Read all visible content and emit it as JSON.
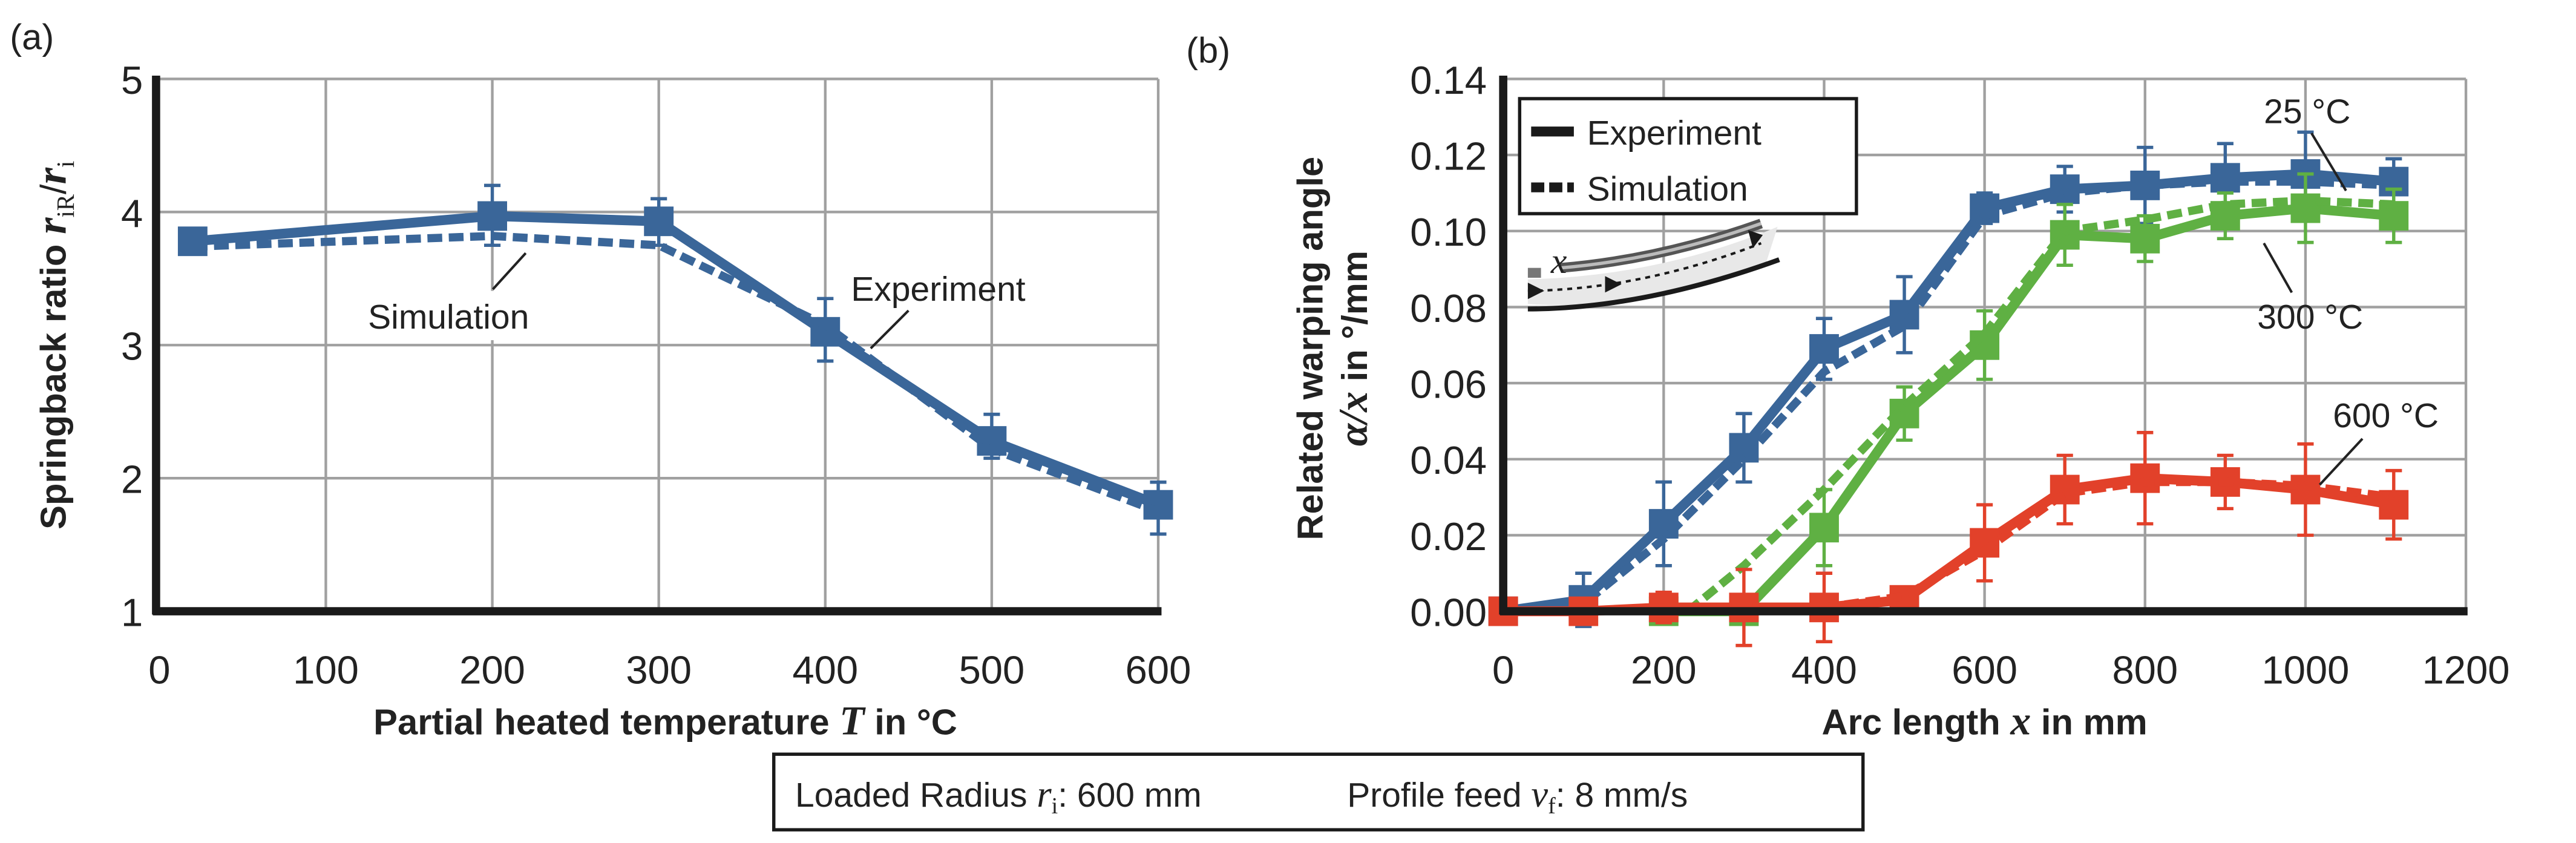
{
  "colors": {
    "blue": "#3a6699",
    "green": "#5fb043",
    "red": "#e2412a",
    "axis": "#1a1a1a",
    "grid": "#a0a0a0"
  },
  "chart_data": [
    {
      "panel_label": "(a)",
      "type": "line",
      "xlabel_pre": "Partial heated temperature ",
      "xlabel_var": "T",
      "xlabel_post": " in °C",
      "ylabel_pre": "Springback ratio ",
      "ylabel_var": "r",
      "ylabel_sub1": "iR",
      "ylabel_slash": "/",
      "ylabel_var2": "r",
      "ylabel_sub2": "i",
      "xlim": [
        0,
        600
      ],
      "ylim": [
        1,
        5
      ],
      "xticks": [
        0,
        100,
        200,
        300,
        400,
        500,
        600
      ],
      "yticks": [
        1,
        2,
        3,
        4,
        5
      ],
      "grid": true,
      "series": [
        {
          "name": "Experiment",
          "style": "solid",
          "color": "blue",
          "x": [
            20,
            200,
            300,
            400,
            500,
            600
          ],
          "y": [
            3.78,
            3.97,
            3.93,
            3.1,
            2.28,
            1.8
          ],
          "err_low": [
            3.72,
            3.75,
            3.75,
            2.88,
            2.15,
            1.58
          ],
          "err_high": [
            3.84,
            4.2,
            4.1,
            3.35,
            2.48,
            1.97
          ]
        },
        {
          "name": "Simulation",
          "style": "dashed",
          "color": "blue",
          "x": [
            20,
            200,
            300,
            400,
            500,
            600
          ],
          "y": [
            3.74,
            3.82,
            3.75,
            3.15,
            2.22,
            1.75
          ]
        }
      ],
      "annotations": [
        {
          "text": "Simulation",
          "points_to": "Simulation"
        },
        {
          "text": "Experiment",
          "points_to": "Experiment"
        }
      ]
    },
    {
      "panel_label": "(b)",
      "type": "line",
      "xlabel_pre": "Arc length ",
      "xlabel_var": "x",
      "xlabel_post": " in mm",
      "ylabel_line1": "Related warping angle",
      "ylabel_var": "α/x",
      "ylabel_post": " in °/mm",
      "xlim": [
        0,
        1200
      ],
      "ylim": [
        0,
        0.14
      ],
      "xticks": [
        0,
        200,
        400,
        600,
        800,
        1000,
        1200
      ],
      "yticks": [
        "0.00",
        "0.02",
        "0.04",
        "0.06",
        "0.08",
        "0.10",
        "0.12",
        "0.14"
      ],
      "grid": true,
      "legend": {
        "position": "top-left",
        "entries": [
          "Experiment",
          "Simulation"
        ]
      },
      "inset_label": "x",
      "series": [
        {
          "name": "25 °C Experiment",
          "style": "solid",
          "color": "blue",
          "x": [
            0,
            100,
            200,
            300,
            400,
            500,
            600,
            700,
            800,
            900,
            1000,
            1110
          ],
          "y": [
            0,
            0.003,
            0.023,
            0.043,
            0.069,
            0.078,
            0.106,
            0.111,
            0.112,
            0.114,
            0.115,
            0.113
          ],
          "err": [
            0.002,
            0.007,
            0.011,
            0.009,
            0.008,
            0.01,
            0.004,
            0.006,
            0.01,
            0.009,
            0.011,
            0.006
          ]
        },
        {
          "name": "25 °C Simulation",
          "style": "dashed",
          "color": "blue",
          "x": [
            0,
            100,
            200,
            300,
            400,
            500,
            600,
            700,
            800,
            900,
            1000,
            1110
          ],
          "y": [
            0,
            0.002,
            0.019,
            0.04,
            0.063,
            0.075,
            0.104,
            0.11,
            0.112,
            0.113,
            0.113,
            0.112
          ]
        },
        {
          "name": "300 °C Experiment",
          "style": "solid",
          "color": "green",
          "x": [
            200,
            300,
            400,
            500,
            600,
            700,
            800,
            900,
            1000,
            1110
          ],
          "y": [
            0,
            0,
            0.022,
            0.052,
            0.07,
            0.099,
            0.098,
            0.104,
            0.106,
            0.104
          ],
          "err": [
            0.002,
            0.002,
            0.01,
            0.007,
            0.009,
            0.008,
            0.006,
            0.006,
            0.009,
            0.007
          ]
        },
        {
          "name": "300 °C Simulation",
          "style": "dashed",
          "color": "green",
          "x": [
            230,
            300,
            400,
            500,
            600,
            700,
            800,
            900,
            1000,
            1110
          ],
          "y": [
            0,
            0.012,
            0.032,
            0.054,
            0.073,
            0.1,
            0.103,
            0.107,
            0.108,
            0.107
          ]
        },
        {
          "name": "600 °C Experiment",
          "style": "solid",
          "color": "red",
          "x": [
            0,
            100,
            200,
            300,
            400,
            500,
            600,
            700,
            800,
            900,
            1000,
            1110
          ],
          "y": [
            0,
            0,
            0.001,
            0.001,
            0.001,
            0.003,
            0.018,
            0.032,
            0.035,
            0.034,
            0.032,
            0.028
          ],
          "err": [
            0.002,
            0.002,
            0.004,
            0.01,
            0.009,
            0.002,
            0.01,
            0.009,
            0.012,
            0.007,
            0.012,
            0.009
          ]
        },
        {
          "name": "600 °C Simulation",
          "style": "dashed",
          "color": "red",
          "x": [
            0,
            100,
            200,
            300,
            400,
            500,
            600,
            700,
            800,
            900,
            1000,
            1110
          ],
          "y": [
            0,
            0,
            0.001,
            0.001,
            0.001,
            0.004,
            0.016,
            0.031,
            0.034,
            0.034,
            0.033,
            0.03
          ]
        }
      ],
      "annotations": [
        {
          "text": "25 °C"
        },
        {
          "text": "300 °C"
        },
        {
          "text": "600 °C"
        }
      ]
    }
  ],
  "footer": {
    "radius_label": "Loaded Radius ",
    "radius_var": "r",
    "radius_sub": "i",
    "radius_value": ": 600 mm",
    "feed_label": "Profile feed ",
    "feed_var": "v",
    "feed_sub": "f",
    "feed_value": ": 8 mm/s"
  }
}
